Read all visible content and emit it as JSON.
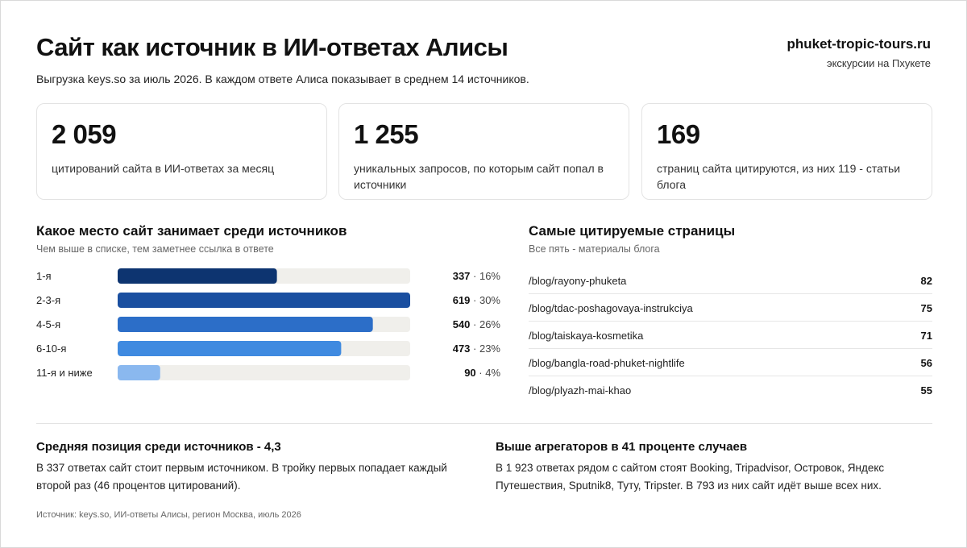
{
  "header": {
    "title": "Сайт как источник в ИИ-ответах Алисы",
    "subtitle": "Выгрузка keys.so за июль 2026. В каждом ответе Алиса показывает в среднем 14 источников.",
    "brand_name": "phuket-tropic-tours.ru",
    "brand_tagline": "экскурсии на Пхукете"
  },
  "kpis": [
    {
      "value": "2 059",
      "label": "цитирований сайта в ИИ-ответах за месяц"
    },
    {
      "value": "1 255",
      "label": "уникальных запросов, по которым сайт попал в источники"
    },
    {
      "value": "169",
      "label": "страниц сайта цитируются, из них 119 - статьи блога"
    }
  ],
  "rank_section": {
    "title": "Какое место сайт занимает среди источников",
    "subtitle": "Чем выше в списке, тем заметнее ссылка в ответе"
  },
  "pages_section": {
    "title": "Самые цитируемые страницы",
    "subtitle": "Все пять - материалы блога",
    "rows": [
      {
        "path": "/blog/rayony-phuketa",
        "count": "82"
      },
      {
        "path": "/blog/tdac-poshagovaya-instrukciya",
        "count": "75"
      },
      {
        "path": "/blog/taiskaya-kosmetika",
        "count": "71"
      },
      {
        "path": "/blog/bangla-road-phuket-nightlife",
        "count": "56"
      },
      {
        "path": "/blog/plyazh-mai-khao",
        "count": "55"
      }
    ]
  },
  "chart_data": {
    "type": "bar",
    "orientation": "horizontal",
    "categories": [
      "1-я",
      "2-3-я",
      "4-5-я",
      "6-10-я",
      "11-я и ниже"
    ],
    "values": [
      337,
      619,
      540,
      473,
      90
    ],
    "shares": [
      "16%",
      "30%",
      "26%",
      "23%",
      "4%"
    ],
    "colors": [
      "#0d3470",
      "#1a4fa0",
      "#2c6ec8",
      "#3f8ae0",
      "#8ab8ef"
    ],
    "track_color": "#f0efeb",
    "xlim": [
      0,
      619
    ]
  },
  "notes": [
    {
      "title": "Средняя позиция среди источников - 4,3",
      "text": "В 337 ответах сайт стоит первым источником. В тройку первых попадает каждый второй раз (46 процентов цитирований)."
    },
    {
      "title": "Выше агрегаторов в 41 проценте случаев",
      "text": "В 1 923 ответах рядом с сайтом стоят Booking, Tripadvisor, Островок, Яндекс Путешествия, Sputnik8, Туту, Tripster. В 793 из них сайт идёт выше всех них."
    },
    {}
  ],
  "footer": {
    "source": "Источник: keys.so, ИИ-ответы Алисы, регион Москва, июль 2026"
  }
}
